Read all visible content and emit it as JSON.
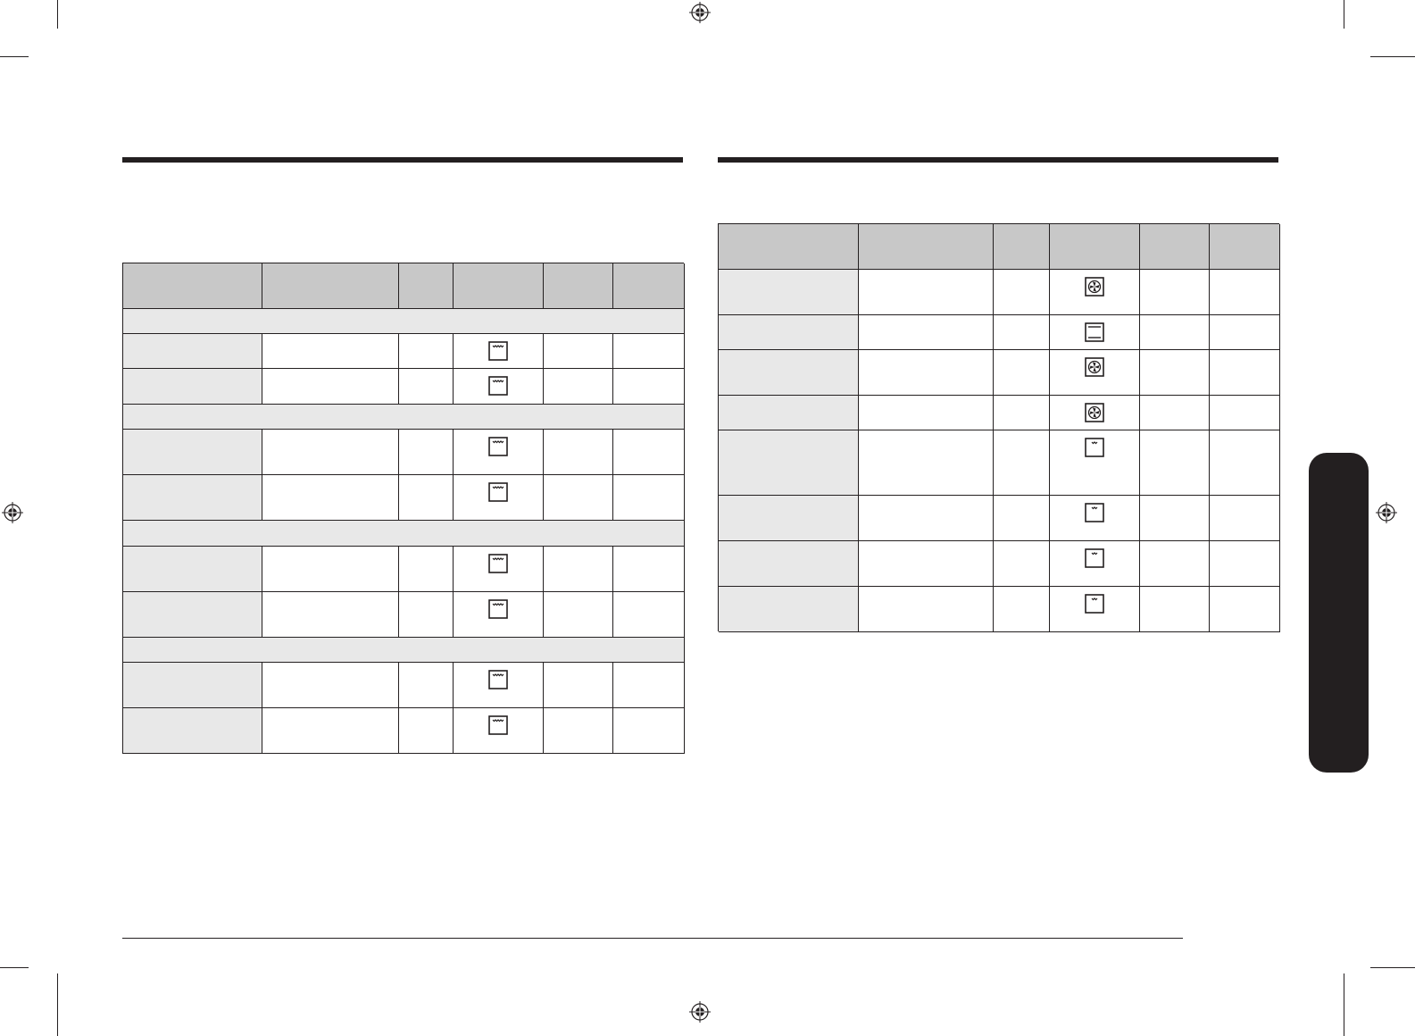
{
  "colors": {
    "ink": "#231f20",
    "header_fill": "#c8c8c8",
    "label_fill": "#e8e8e8",
    "side_tab": "#231f20"
  },
  "left_table": {
    "columns": 6,
    "rows": [
      {
        "type": "header"
      },
      {
        "type": "section"
      },
      {
        "type": "row",
        "icon": "grill-icon"
      },
      {
        "type": "row",
        "icon": "grill-icon"
      },
      {
        "type": "section"
      },
      {
        "type": "row",
        "icon": "grill-icon"
      },
      {
        "type": "row",
        "icon": "grill-icon"
      },
      {
        "type": "section"
      },
      {
        "type": "row",
        "icon": "grill-icon"
      },
      {
        "type": "row",
        "icon": "grill-icon"
      },
      {
        "type": "section"
      },
      {
        "type": "row",
        "icon": "grill-icon"
      },
      {
        "type": "row",
        "icon": "grill-icon"
      }
    ]
  },
  "right_table": {
    "columns": 6,
    "rows": [
      {
        "type": "header"
      },
      {
        "type": "row",
        "icon": "fan-conventional-icon"
      },
      {
        "type": "row",
        "icon": "top-bottom-heat-icon"
      },
      {
        "type": "row",
        "icon": "fan-conventional-icon"
      },
      {
        "type": "row",
        "icon": "fan-conventional-icon"
      },
      {
        "type": "row",
        "icon": "small-grill-icon"
      },
      {
        "type": "row",
        "icon": "small-grill-icon"
      },
      {
        "type": "row",
        "icon": "small-grill-icon"
      },
      {
        "type": "row",
        "icon": "small-grill-icon"
      }
    ]
  }
}
